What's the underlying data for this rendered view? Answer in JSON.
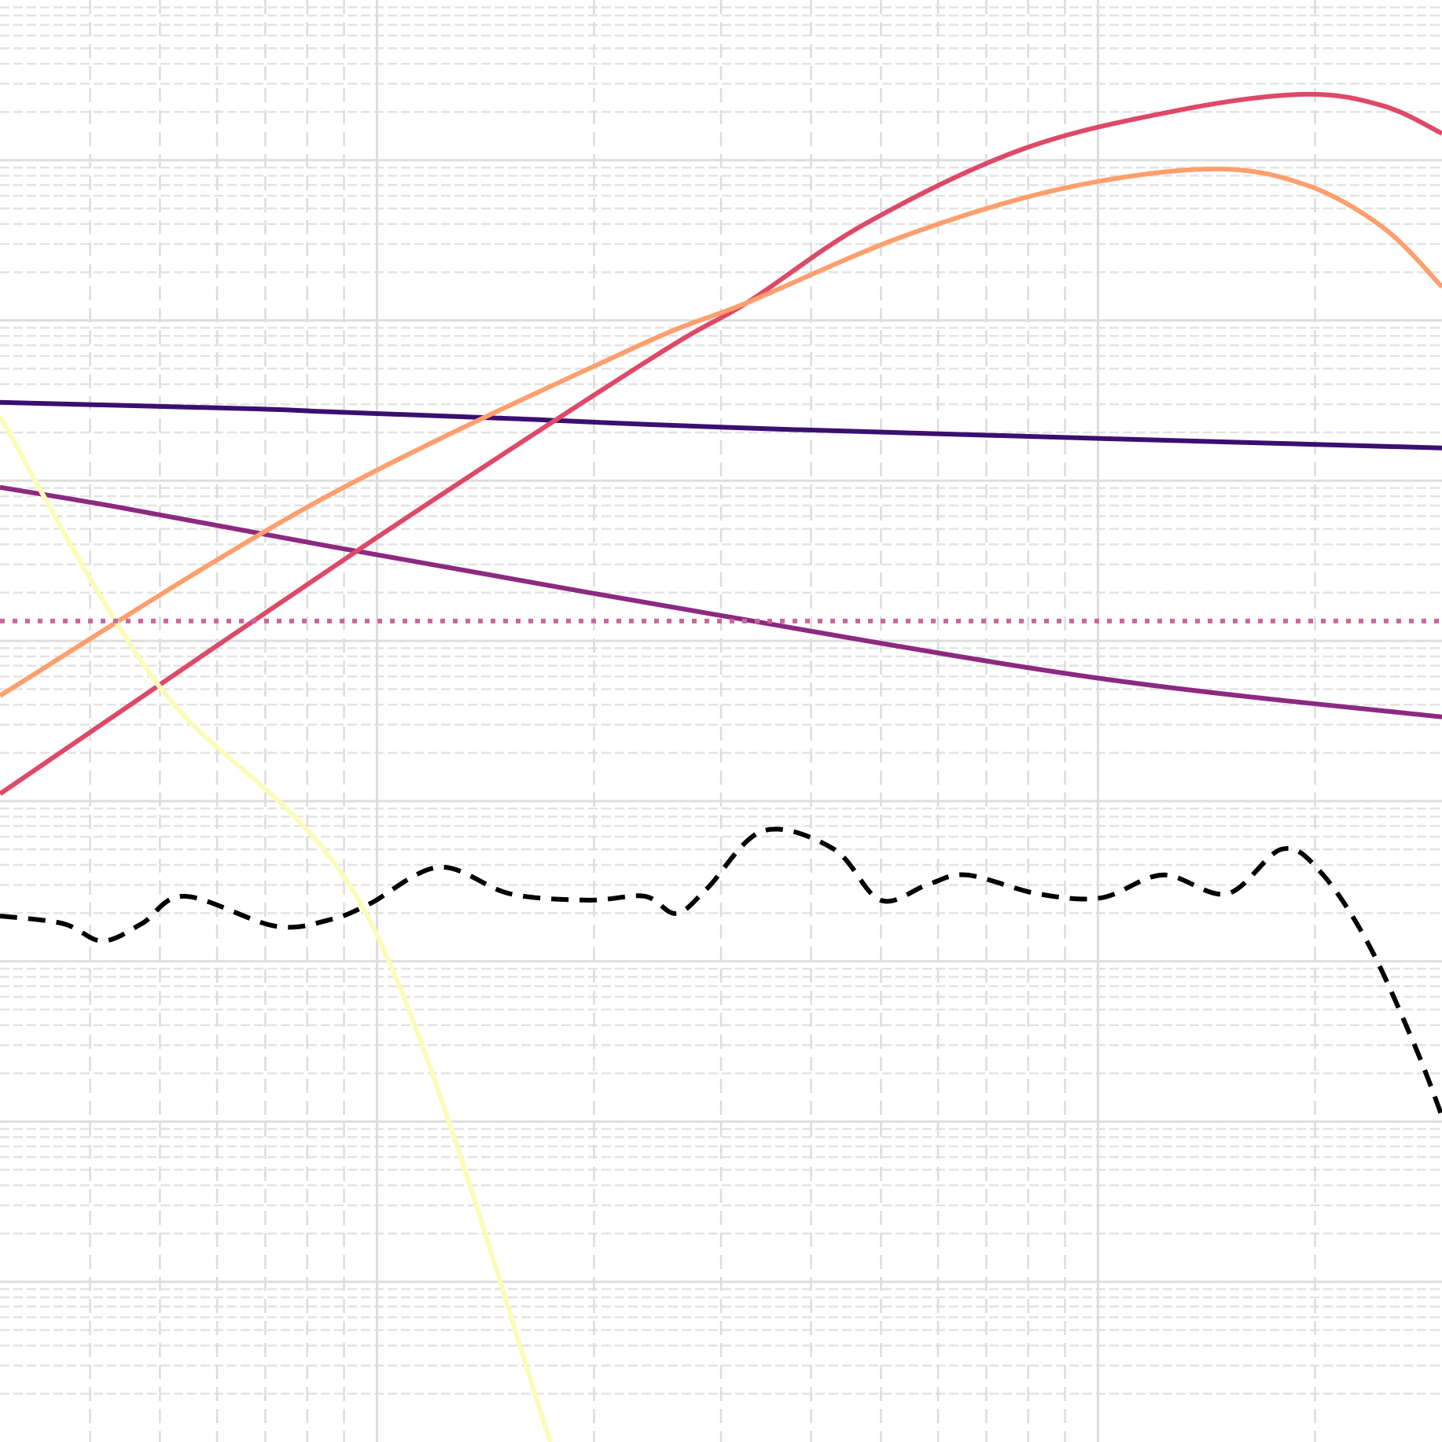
{
  "chart_data": {
    "type": "line",
    "log_x": true,
    "log_y": true,
    "grid": true,
    "xlim": [
      3,
      300
    ],
    "ylim": [
      1e-06,
      1000
    ],
    "xticks": [
      10,
      100
    ],
    "yticks": [
      1e-05,
      0.0001,
      0.001,
      0.01,
      0.1,
      1,
      10,
      100
    ],
    "series": [
      {
        "color": "#3b0f70",
        "linestyle": "solid",
        "x": [
          3,
          6.7,
          8.61,
          15.0,
          37.0,
          300
        ],
        "values": [
          3.08,
          2.81,
          2.69,
          2.45,
          2.09,
          1.6
        ]
      },
      {
        "color": "#8c2981",
        "linestyle": "solid",
        "x": [
          3,
          4.37,
          8.61,
          28.7,
          101,
          300
        ],
        "values": [
          0.908,
          0.684,
          0.389,
          0.149,
          0.0582,
          0.0335
        ]
      },
      {
        "color": "#de4968",
        "linestyle": "solid",
        "x": [
          3,
          9.76,
          24.1,
          32.6,
          47.5,
          78.5,
          130,
          194,
          249,
          300
        ],
        "values": [
          0.0111,
          0.411,
          5.85,
          12.9,
          40.0,
          117,
          206,
          258,
          218,
          147
        ]
      },
      {
        "color": "#fe9f6d",
        "linestyle": "solid",
        "x": [
          3,
          8.19,
          22.4,
          32.6,
          53.9,
          89.0,
          143,
          194,
          249,
          300
        ],
        "values": [
          0.0455,
          0.724,
          6.55,
          12.9,
          33.7,
          66.4,
          88.1,
          70.3,
          37.8,
          16.2
        ]
      },
      {
        "color": "#fcfbb8",
        "linestyle": "solid",
        "x": [
          3,
          4.96,
          9.76,
          17.4
        ],
        "values": [
          2.51,
          0.0538,
          0.00182,
          1e-06
        ]
      },
      {
        "color": "#000000",
        "linestyle": "dashed",
        "x": [
          3,
          3.67,
          4.16,
          4.72,
          5.41,
          7.22,
          8.61,
          9.76,
          12.2,
          15.3,
          19.7,
          23.5,
          26.0,
          28.7,
          34.3,
          43.0,
          49.9,
          58.1,
          65.8,
          82.5,
          101,
          123,
          151,
          180,
          204,
          237,
          275,
          300
        ],
        "values": [
          0.00192,
          0.00172,
          0.00134,
          0.00172,
          0.00255,
          0.00166,
          0.00182,
          0.00228,
          0.00387,
          0.00264,
          0.00241,
          0.00255,
          0.00199,
          0.00285,
          0.00652,
          0.00502,
          0.00241,
          0.00302,
          0.00346,
          0.00264,
          0.00249,
          0.00346,
          0.00264,
          0.00502,
          0.00357,
          0.00129,
          0.000298,
          0.000108
        ]
      },
      {
        "color": "#c8689c",
        "linestyle": "dotted",
        "x": [
          3,
          300
        ],
        "values": [
          0.133,
          0.133
        ]
      }
    ]
  }
}
